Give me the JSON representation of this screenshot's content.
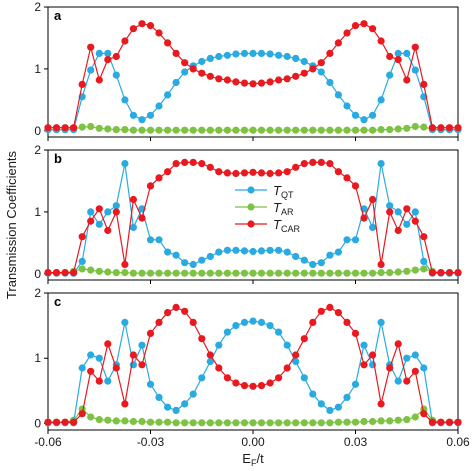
{
  "chart_data": {
    "type": "line",
    "ylabel": "Transmission Coefficients",
    "xlabel_main": "E",
    "xlabel_sub": "F",
    "xlabel_suffix": "/t",
    "xlim": [
      -0.06,
      0.06
    ],
    "ylim": [
      -0.1,
      2.0
    ],
    "x_ticks": [
      -0.06,
      -0.03,
      0.0,
      0.03,
      0.06
    ],
    "x_tick_labels": [
      "-0.06",
      "-0.03",
      "0.00",
      "0.03",
      "0.06"
    ],
    "y_ticks": [
      0,
      1,
      2
    ],
    "y_tick_labels": [
      "0",
      "1",
      "2"
    ],
    "legend": {
      "placement": "center-left of panel b",
      "entries": [
        {
          "main": "T",
          "sub": "QT",
          "color": "#29abe2"
        },
        {
          "main": "T",
          "sub": "AR",
          "color": "#7dc242"
        },
        {
          "main": "T",
          "sub": "CAR",
          "color": "#e8191f"
        }
      ]
    },
    "colors": {
      "QT": "#29abe2",
      "AR": "#7dc242",
      "CAR": "#e8191f"
    },
    "x": [
      -0.06,
      -0.0575,
      -0.055,
      -0.0525,
      -0.05,
      -0.0475,
      -0.045,
      -0.0425,
      -0.04,
      -0.0375,
      -0.035,
      -0.0325,
      -0.03,
      -0.0275,
      -0.025,
      -0.0225,
      -0.02,
      -0.0175,
      -0.015,
      -0.0125,
      -0.01,
      -0.0075,
      -0.005,
      -0.0025,
      0.0,
      0.0025,
      0.005,
      0.0075,
      0.01,
      0.0125,
      0.015,
      0.0175,
      0.02,
      0.0225,
      0.025,
      0.0275,
      0.03,
      0.0325,
      0.035,
      0.0375,
      0.04,
      0.0425,
      0.045,
      0.0475,
      0.05,
      0.0525,
      0.055,
      0.0575,
      0.06
    ],
    "panels": [
      {
        "label": "a",
        "series": [
          {
            "name": "QT",
            "values": [
              0.02,
              0.02,
              0.02,
              0.02,
              0.55,
              0.98,
              1.25,
              1.25,
              0.9,
              0.5,
              0.25,
              0.18,
              0.25,
              0.4,
              0.58,
              0.78,
              0.95,
              1.05,
              1.12,
              1.17,
              1.2,
              1.22,
              1.24,
              1.25,
              1.25,
              1.25,
              1.24,
              1.22,
              1.2,
              1.17,
              1.12,
              1.05,
              0.95,
              0.78,
              0.58,
              0.4,
              0.25,
              0.18,
              0.25,
              0.5,
              0.9,
              1.25,
              1.25,
              0.98,
              0.55,
              0.02,
              0.02,
              0.02,
              0.02
            ]
          },
          {
            "name": "AR",
            "values": [
              0.02,
              0.02,
              0.02,
              0.03,
              0.06,
              0.07,
              0.04,
              0.03,
              0.02,
              0.02,
              0.01,
              0.01,
              0.01,
              0.01,
              0.01,
              0.01,
              0.01,
              0.01,
              0.01,
              0.01,
              0.01,
              0.01,
              0.01,
              0.01,
              0.01,
              0.01,
              0.01,
              0.01,
              0.01,
              0.01,
              0.01,
              0.01,
              0.01,
              0.01,
              0.01,
              0.01,
              0.01,
              0.01,
              0.01,
              0.02,
              0.02,
              0.03,
              0.04,
              0.07,
              0.06,
              0.03,
              0.02,
              0.02,
              0.02
            ]
          },
          {
            "name": "CAR",
            "values": [
              0.05,
              0.05,
              0.05,
              0.05,
              0.75,
              1.35,
              0.82,
              1.15,
              1.2,
              1.45,
              1.65,
              1.73,
              1.7,
              1.58,
              1.42,
              1.25,
              1.1,
              1.0,
              0.93,
              0.88,
              0.84,
              0.82,
              0.79,
              0.77,
              0.76,
              0.77,
              0.79,
              0.82,
              0.84,
              0.88,
              0.93,
              1.0,
              1.1,
              1.25,
              1.42,
              1.58,
              1.7,
              1.73,
              1.65,
              1.45,
              1.2,
              1.15,
              0.82,
              1.35,
              0.75,
              0.05,
              0.05,
              0.05,
              0.05
            ]
          }
        ]
      },
      {
        "label": "b",
        "series": [
          {
            "name": "QT",
            "values": [
              0.01,
              0.01,
              0.01,
              0.01,
              0.2,
              1.0,
              0.8,
              1.0,
              1.1,
              1.78,
              0.75,
              1.05,
              0.55,
              0.55,
              0.35,
              0.3,
              0.18,
              0.15,
              0.22,
              0.28,
              0.35,
              0.38,
              0.38,
              0.37,
              0.36,
              0.37,
              0.38,
              0.38,
              0.35,
              0.28,
              0.22,
              0.15,
              0.18,
              0.3,
              0.35,
              0.55,
              0.55,
              1.05,
              0.75,
              1.78,
              1.1,
              1.0,
              0.8,
              1.0,
              0.2,
              0.01,
              0.01,
              0.01,
              0.01
            ]
          },
          {
            "name": "AR",
            "values": [
              0.02,
              0.02,
              0.02,
              0.04,
              0.08,
              0.06,
              0.04,
              0.03,
              0.02,
              0.02,
              0.01,
              0.01,
              0.01,
              0.01,
              0.01,
              0.01,
              0.01,
              0.01,
              0.01,
              0.01,
              0.01,
              0.01,
              0.01,
              0.01,
              0.01,
              0.01,
              0.01,
              0.01,
              0.01,
              0.01,
              0.01,
              0.01,
              0.01,
              0.01,
              0.01,
              0.01,
              0.01,
              0.01,
              0.01,
              0.02,
              0.02,
              0.03,
              0.04,
              0.06,
              0.08,
              0.04,
              0.02,
              0.02,
              0.02
            ]
          },
          {
            "name": "CAR",
            "values": [
              0.02,
              0.02,
              0.02,
              0.02,
              0.6,
              0.85,
              1.05,
              0.7,
              1.0,
              0.15,
              1.2,
              0.9,
              1.42,
              1.55,
              1.65,
              1.78,
              1.8,
              1.8,
              1.78,
              1.72,
              1.65,
              1.63,
              1.62,
              1.63,
              1.64,
              1.63,
              1.62,
              1.63,
              1.65,
              1.72,
              1.78,
              1.8,
              1.8,
              1.78,
              1.65,
              1.55,
              1.42,
              0.9,
              1.2,
              0.15,
              1.0,
              0.7,
              1.05,
              0.85,
              0.6,
              0.02,
              0.02,
              0.02,
              0.02
            ]
          }
        ]
      },
      {
        "label": "c",
        "series": [
          {
            "name": "QT",
            "values": [
              0.01,
              0.01,
              0.01,
              0.01,
              0.85,
              1.05,
              1.0,
              0.65,
              0.9,
              1.55,
              0.9,
              1.2,
              0.6,
              0.4,
              0.25,
              0.2,
              0.3,
              0.45,
              0.7,
              0.95,
              1.2,
              1.4,
              1.5,
              1.55,
              1.57,
              1.55,
              1.5,
              1.4,
              1.2,
              0.95,
              0.7,
              0.45,
              0.3,
              0.2,
              0.25,
              0.4,
              0.6,
              1.2,
              0.9,
              1.55,
              0.9,
              0.65,
              1.0,
              1.05,
              0.85,
              0.01,
              0.01,
              0.01,
              0.01
            ]
          },
          {
            "name": "AR",
            "values": [
              0.02,
              0.02,
              0.02,
              0.05,
              0.22,
              0.1,
              0.06,
              0.05,
              0.04,
              0.04,
              0.03,
              0.03,
              0.02,
              0.02,
              0.02,
              0.01,
              0.01,
              0.01,
              0.01,
              0.01,
              0.01,
              0.01,
              0.01,
              0.01,
              0.01,
              0.01,
              0.01,
              0.01,
              0.01,
              0.01,
              0.01,
              0.01,
              0.01,
              0.01,
              0.02,
              0.02,
              0.02,
              0.03,
              0.03,
              0.04,
              0.04,
              0.05,
              0.06,
              0.1,
              0.22,
              0.05,
              0.02,
              0.02,
              0.02
            ]
          },
          {
            "name": "CAR",
            "values": [
              0.02,
              0.02,
              0.02,
              0.02,
              0.15,
              0.8,
              0.65,
              1.22,
              0.85,
              0.3,
              1.05,
              0.9,
              1.38,
              1.55,
              1.7,
              1.78,
              1.72,
              1.55,
              1.3,
              1.05,
              0.85,
              0.7,
              0.62,
              0.58,
              0.57,
              0.58,
              0.62,
              0.7,
              0.85,
              1.05,
              1.3,
              1.55,
              1.72,
              1.78,
              1.7,
              1.55,
              1.38,
              0.9,
              1.05,
              0.3,
              0.85,
              1.22,
              0.65,
              0.8,
              0.15,
              0.02,
              0.02,
              0.02,
              0.02
            ]
          }
        ]
      }
    ]
  }
}
